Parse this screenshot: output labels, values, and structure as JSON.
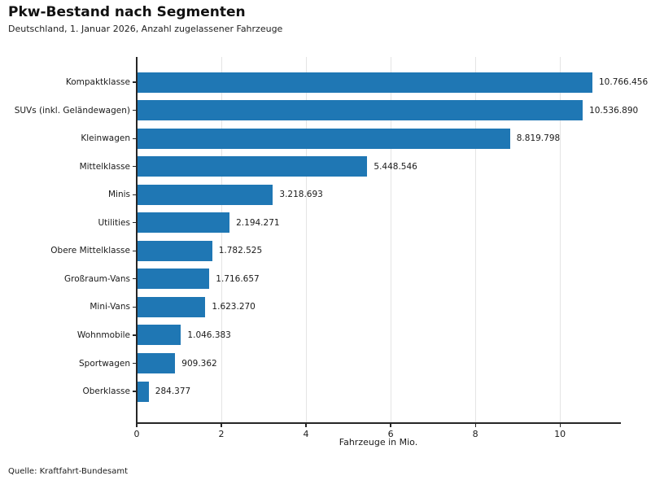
{
  "header": {
    "title": "Pkw-Bestand nach Segmenten",
    "subtitle": "Deutschland, 1. Januar 2026, Anzahl zugelassener Fahrzeuge"
  },
  "chart_data": {
    "type": "bar",
    "orientation": "horizontal",
    "title": "Pkw-Bestand nach Segmenten",
    "subtitle": "Deutschland, 1. Januar 2026, Anzahl zugelassener Fahrzeuge",
    "xlabel": "Fahrzeuge in Mio.",
    "categories": [
      "Kompaktklasse",
      "SUVs (inkl. Geländewagen)",
      "Kleinwagen",
      "Mittelklasse",
      "Minis",
      "Utilities",
      "Obere Mittelklasse",
      "Großraum-Vans",
      "Mini-Vans",
      "Wohnmobile",
      "Sportwagen",
      "Oberklasse"
    ],
    "values": [
      10766456,
      10536890,
      8819798,
      5448546,
      3218693,
      2194271,
      1782525,
      1716657,
      1623270,
      1046383,
      909362,
      284377
    ],
    "value_labels": [
      "10.766.456",
      "10.536.890",
      "8.819.798",
      "5.448.546",
      "3.218.693",
      "2.194.271",
      "1.782.525",
      "1.716.657",
      "1.623.270",
      "1.046.383",
      "909.362",
      "284.377"
    ],
    "value_unit": 1000000,
    "x_ticks": [
      0,
      2,
      4,
      6,
      8,
      10
    ],
    "xlim": [
      0,
      11.42
    ],
    "grid": "vertical",
    "legend": "none",
    "bar_color": "#1f77b4"
  },
  "footer": {
    "source": "Quelle: Kraftfahrt-Bundesamt"
  }
}
